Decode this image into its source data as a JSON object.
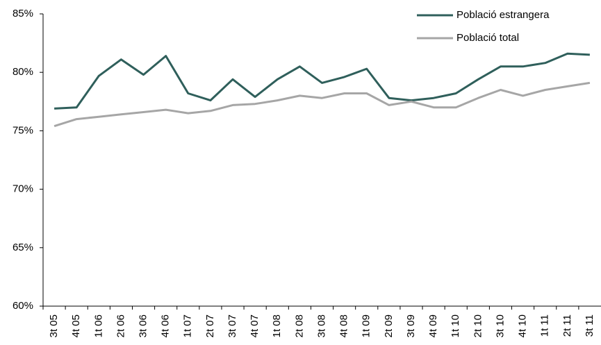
{
  "chart_data": {
    "type": "line",
    "categories": [
      "3t 05",
      "4t 05",
      "1t 06",
      "2t 06",
      "3t 06",
      "4t 06",
      "1t 07",
      "2t 07",
      "3t 07",
      "4t 07",
      "1t 08",
      "2t 08",
      "3t 08",
      "4t 08",
      "1t 09",
      "2t 09",
      "3t 09",
      "4t 09",
      "1t 10",
      "2t 10",
      "3t 10",
      "4t 10",
      "1t 11",
      "2t 11",
      "3t 11"
    ],
    "series": [
      {
        "name": "Població estrangera",
        "color": "#2f5f5b",
        "values": [
          76.9,
          77.0,
          79.7,
          81.1,
          79.8,
          81.4,
          78.2,
          77.6,
          79.4,
          77.9,
          79.4,
          80.5,
          79.1,
          79.6,
          80.3,
          77.8,
          77.6,
          77.8,
          78.2,
          79.4,
          80.5,
          80.5,
          80.8,
          81.6,
          81.5
        ]
      },
      {
        "name": "Població total",
        "color": "#a6a6a6",
        "values": [
          75.4,
          76.0,
          76.2,
          76.4,
          76.6,
          76.8,
          76.5,
          76.7,
          77.2,
          77.3,
          77.6,
          78.0,
          77.8,
          78.2,
          78.2,
          77.2,
          77.5,
          77.0,
          77.0,
          77.8,
          78.5,
          78.0,
          78.5,
          78.8,
          79.1
        ]
      }
    ],
    "ylim": [
      60,
      85
    ],
    "yticks": [
      {
        "value": 60,
        "label": "60%"
      },
      {
        "value": 65,
        "label": "65%"
      },
      {
        "value": 70,
        "label": "70%"
      },
      {
        "value": 75,
        "label": "75%"
      },
      {
        "value": 80,
        "label": "80%"
      },
      {
        "value": 85,
        "label": "85%"
      }
    ],
    "grid": false,
    "legend": "top-right"
  }
}
